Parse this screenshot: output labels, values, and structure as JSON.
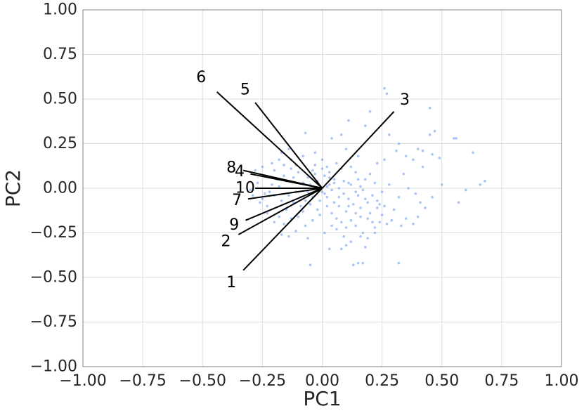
{
  "chart_data": {
    "type": "scatter",
    "title": "",
    "xlabel": "PC1",
    "ylabel": "PC2",
    "xlim": [
      -1.0,
      1.0
    ],
    "ylim": [
      -1.0,
      1.0
    ],
    "xticks": [
      "−1.00",
      "−0.75",
      "−0.50",
      "−0.25",
      "0.00",
      "0.25",
      "0.50",
      "0.75",
      "1.00"
    ],
    "yticks": [
      "−1.00",
      "−0.75",
      "−0.50",
      "−0.25",
      "0.00",
      "0.25",
      "0.50",
      "0.75",
      "1.00"
    ],
    "grid": true,
    "colors": {
      "points": "#6495ed",
      "vectors": "#000000",
      "grid": "#dddddd",
      "spine": "#808080"
    },
    "vectors": [
      {
        "label": "1",
        "x": -0.33,
        "y": -0.46
      },
      {
        "label": "2",
        "x": -0.35,
        "y": -0.26
      },
      {
        "label": "3",
        "x": 0.3,
        "y": 0.43
      },
      {
        "label": "4",
        "x": -0.3,
        "y": 0.08
      },
      {
        "label": "5",
        "x": -0.28,
        "y": 0.48
      },
      {
        "label": "6",
        "x": -0.44,
        "y": 0.54
      },
      {
        "label": "7",
        "x": -0.31,
        "y": -0.06
      },
      {
        "label": "8",
        "x": -0.33,
        "y": 0.1
      },
      {
        "label": "9",
        "x": -0.32,
        "y": -0.18
      },
      {
        "label": "10",
        "x": -0.28,
        "y": 0.0
      }
    ],
    "points": [
      [
        0.26,
        0.56
      ],
      [
        0.27,
        0.53
      ],
      [
        0.2,
        0.43
      ],
      [
        0.11,
        0.38
      ],
      [
        0.45,
        0.45
      ],
      [
        0.47,
        0.32
      ],
      [
        0.45,
        0.3
      ],
      [
        0.55,
        0.28
      ],
      [
        0.56,
        0.28
      ],
      [
        0.63,
        0.2
      ],
      [
        0.4,
        0.22
      ],
      [
        0.42,
        0.21
      ],
      [
        0.31,
        0.21
      ],
      [
        0.35,
        0.18
      ],
      [
        0.46,
        0.19
      ],
      [
        0.49,
        0.17
      ],
      [
        0.23,
        0.14
      ],
      [
        0.42,
        0.12
      ],
      [
        0.5,
        0.02
      ],
      [
        0.6,
        -0.01
      ],
      [
        0.66,
        0.02
      ],
      [
        0.68,
        0.04
      ],
      [
        0.57,
        -0.08
      ],
      [
        0.46,
        -0.05
      ],
      [
        0.41,
        -0.08
      ],
      [
        0.32,
        -0.05
      ],
      [
        0.36,
        0.0
      ],
      [
        0.28,
        0.02
      ],
      [
        0.2,
        0.08
      ],
      [
        0.15,
        0.05
      ],
      [
        0.11,
        0.03
      ],
      [
        0.03,
        0.06
      ],
      [
        -0.03,
        0.08
      ],
      [
        0.02,
        0.12
      ],
      [
        -0.07,
        0.31
      ],
      [
        0.04,
        0.28
      ],
      [
        0.1,
        0.22
      ],
      [
        0.15,
        0.18
      ],
      [
        0.22,
        0.03
      ],
      [
        0.25,
        -0.02
      ],
      [
        0.19,
        -0.08
      ],
      [
        0.23,
        -0.11
      ],
      [
        0.25,
        -0.15
      ],
      [
        0.29,
        -0.18
      ],
      [
        0.27,
        -0.2
      ],
      [
        0.22,
        -0.22
      ],
      [
        0.17,
        -0.25
      ],
      [
        0.14,
        -0.21
      ],
      [
        0.12,
        -0.18
      ],
      [
        0.1,
        -0.13
      ],
      [
        0.07,
        -0.1
      ],
      [
        0.05,
        -0.08
      ],
      [
        0.02,
        -0.05
      ],
      [
        0.0,
        -0.02
      ],
      [
        -0.03,
        0.0
      ],
      [
        -0.06,
        -0.02
      ],
      [
        -0.09,
        -0.05
      ],
      [
        -0.12,
        -0.08
      ],
      [
        -0.15,
        -0.12
      ],
      [
        -0.18,
        -0.16
      ],
      [
        -0.2,
        -0.19
      ],
      [
        -0.16,
        -0.2
      ],
      [
        -0.13,
        -0.17
      ],
      [
        -0.11,
        -0.24
      ],
      [
        -0.07,
        -0.21
      ],
      [
        -0.04,
        -0.18
      ],
      [
        -0.01,
        -0.15
      ],
      [
        0.01,
        -0.25
      ],
      [
        0.04,
        -0.21
      ],
      [
        0.06,
        -0.23
      ],
      [
        0.09,
        -0.27
      ],
      [
        0.12,
        -0.3
      ],
      [
        0.16,
        -0.27
      ],
      [
        0.1,
        -0.32
      ],
      [
        0.13,
        -0.43
      ],
      [
        0.15,
        -0.42
      ],
      [
        0.17,
        -0.42
      ],
      [
        0.32,
        -0.42
      ],
      [
        -0.05,
        -0.43
      ],
      [
        -0.14,
        -0.27
      ],
      [
        -0.17,
        -0.26
      ],
      [
        -0.23,
        -0.1
      ],
      [
        -0.25,
        -0.06
      ],
      [
        -0.22,
        -0.02
      ],
      [
        -0.27,
        0.03
      ],
      [
        -0.24,
        0.07
      ],
      [
        -0.2,
        0.1
      ],
      [
        -0.16,
        0.13
      ],
      [
        -0.13,
        0.16
      ],
      [
        -0.17,
        0.2
      ],
      [
        -0.14,
        0.22
      ],
      [
        -0.18,
        0.16
      ],
      [
        -0.21,
        0.14
      ],
      [
        -0.25,
        0.12
      ],
      [
        -0.28,
        0.1
      ],
      [
        -0.3,
        -0.01
      ],
      [
        -0.29,
        -0.04
      ],
      [
        -0.26,
        -0.08
      ],
      [
        -0.23,
        -0.14
      ],
      [
        -0.2,
        -0.04
      ],
      [
        -0.18,
        0.01
      ],
      [
        -0.15,
        0.04
      ],
      [
        -0.12,
        0.06
      ],
      [
        -0.1,
        0.09
      ],
      [
        -0.08,
        0.03
      ],
      [
        -0.06,
        0.06
      ],
      [
        -0.04,
        0.1
      ],
      [
        -0.02,
        0.04
      ],
      [
        0.01,
        0.07
      ],
      [
        0.03,
        0.02
      ],
      [
        0.05,
        0.05
      ],
      [
        0.07,
        0.0
      ],
      [
        0.09,
        -0.03
      ],
      [
        0.11,
        -0.06
      ],
      [
        0.13,
        -0.09
      ],
      [
        0.15,
        -0.04
      ],
      [
        0.17,
        -0.01
      ],
      [
        0.18,
        0.05
      ],
      [
        0.14,
        0.09
      ],
      [
        0.08,
        0.11
      ],
      [
        0.06,
        0.14
      ],
      [
        0.02,
        -0.1
      ],
      [
        -0.02,
        -0.12
      ],
      [
        -0.05,
        -0.09
      ],
      [
        -0.08,
        -0.13
      ],
      [
        -0.1,
        -0.16
      ],
      [
        -0.06,
        -0.28
      ],
      [
        0.03,
        -0.34
      ],
      [
        0.08,
        -0.34
      ],
      [
        0.18,
        -0.33
      ],
      [
        0.21,
        -0.19
      ],
      [
        0.2,
        -0.14
      ],
      [
        0.24,
        -0.09
      ],
      [
        0.3,
        -0.12
      ],
      [
        0.35,
        -0.17
      ],
      [
        0.38,
        -0.2
      ],
      [
        0.33,
        -0.21
      ],
      [
        0.4,
        -0.16
      ],
      [
        0.43,
        -0.11
      ],
      [
        0.39,
        -0.03
      ],
      [
        0.34,
        0.08
      ],
      [
        0.38,
        0.16
      ],
      [
        0.26,
        0.16
      ],
      [
        0.28,
        0.3
      ],
      [
        0.32,
        0.25
      ],
      [
        0.18,
        0.35
      ],
      [
        0.08,
        0.3
      ],
      [
        0.12,
        0.12
      ],
      [
        0.0,
        0.16
      ],
      [
        -0.03,
        0.2
      ],
      [
        -0.08,
        0.18
      ],
      [
        -0.11,
        0.13
      ],
      [
        -0.13,
        0.11
      ],
      [
        -0.16,
        0.07
      ],
      [
        -0.19,
        0.05
      ],
      [
        -0.21,
        0.02
      ],
      [
        -0.24,
        -0.03
      ],
      [
        -0.17,
        -0.07
      ],
      [
        -0.14,
        -0.04
      ],
      [
        -0.11,
        -0.02
      ],
      [
        -0.09,
        -0.1
      ],
      [
        -0.07,
        -0.07
      ],
      [
        -0.04,
        -0.05
      ],
      [
        -0.01,
        -0.07
      ],
      [
        0.01,
        -0.03
      ],
      [
        0.04,
        -0.14
      ],
      [
        0.06,
        -0.17
      ],
      [
        0.08,
        -0.19
      ],
      [
        0.1,
        -0.22
      ],
      [
        0.14,
        -0.14
      ],
      [
        0.16,
        -0.11
      ],
      [
        0.19,
        -0.17
      ],
      [
        0.16,
        -0.16
      ],
      [
        0.11,
        -0.1
      ],
      [
        0.05,
        0.03
      ],
      [
        0.03,
        0.09
      ],
      [
        0.0,
        0.11
      ],
      [
        -0.03,
        0.13
      ],
      [
        -0.05,
        0.02
      ],
      [
        -0.02,
        0.0
      ],
      [
        0.02,
        0.01
      ],
      [
        0.04,
        -0.01
      ],
      [
        0.07,
        -0.05
      ],
      [
        0.09,
        0.04
      ],
      [
        0.12,
        0.02
      ],
      [
        0.14,
        -0.02
      ],
      [
        0.16,
        0.01
      ],
      [
        0.18,
        -0.06
      ],
      [
        0.21,
        -0.04
      ],
      [
        0.23,
        -0.07
      ],
      [
        0.26,
        -0.1
      ],
      [
        0.24,
        -0.19
      ],
      [
        0.22,
        -0.25
      ],
      [
        0.19,
        -0.28
      ]
    ]
  }
}
